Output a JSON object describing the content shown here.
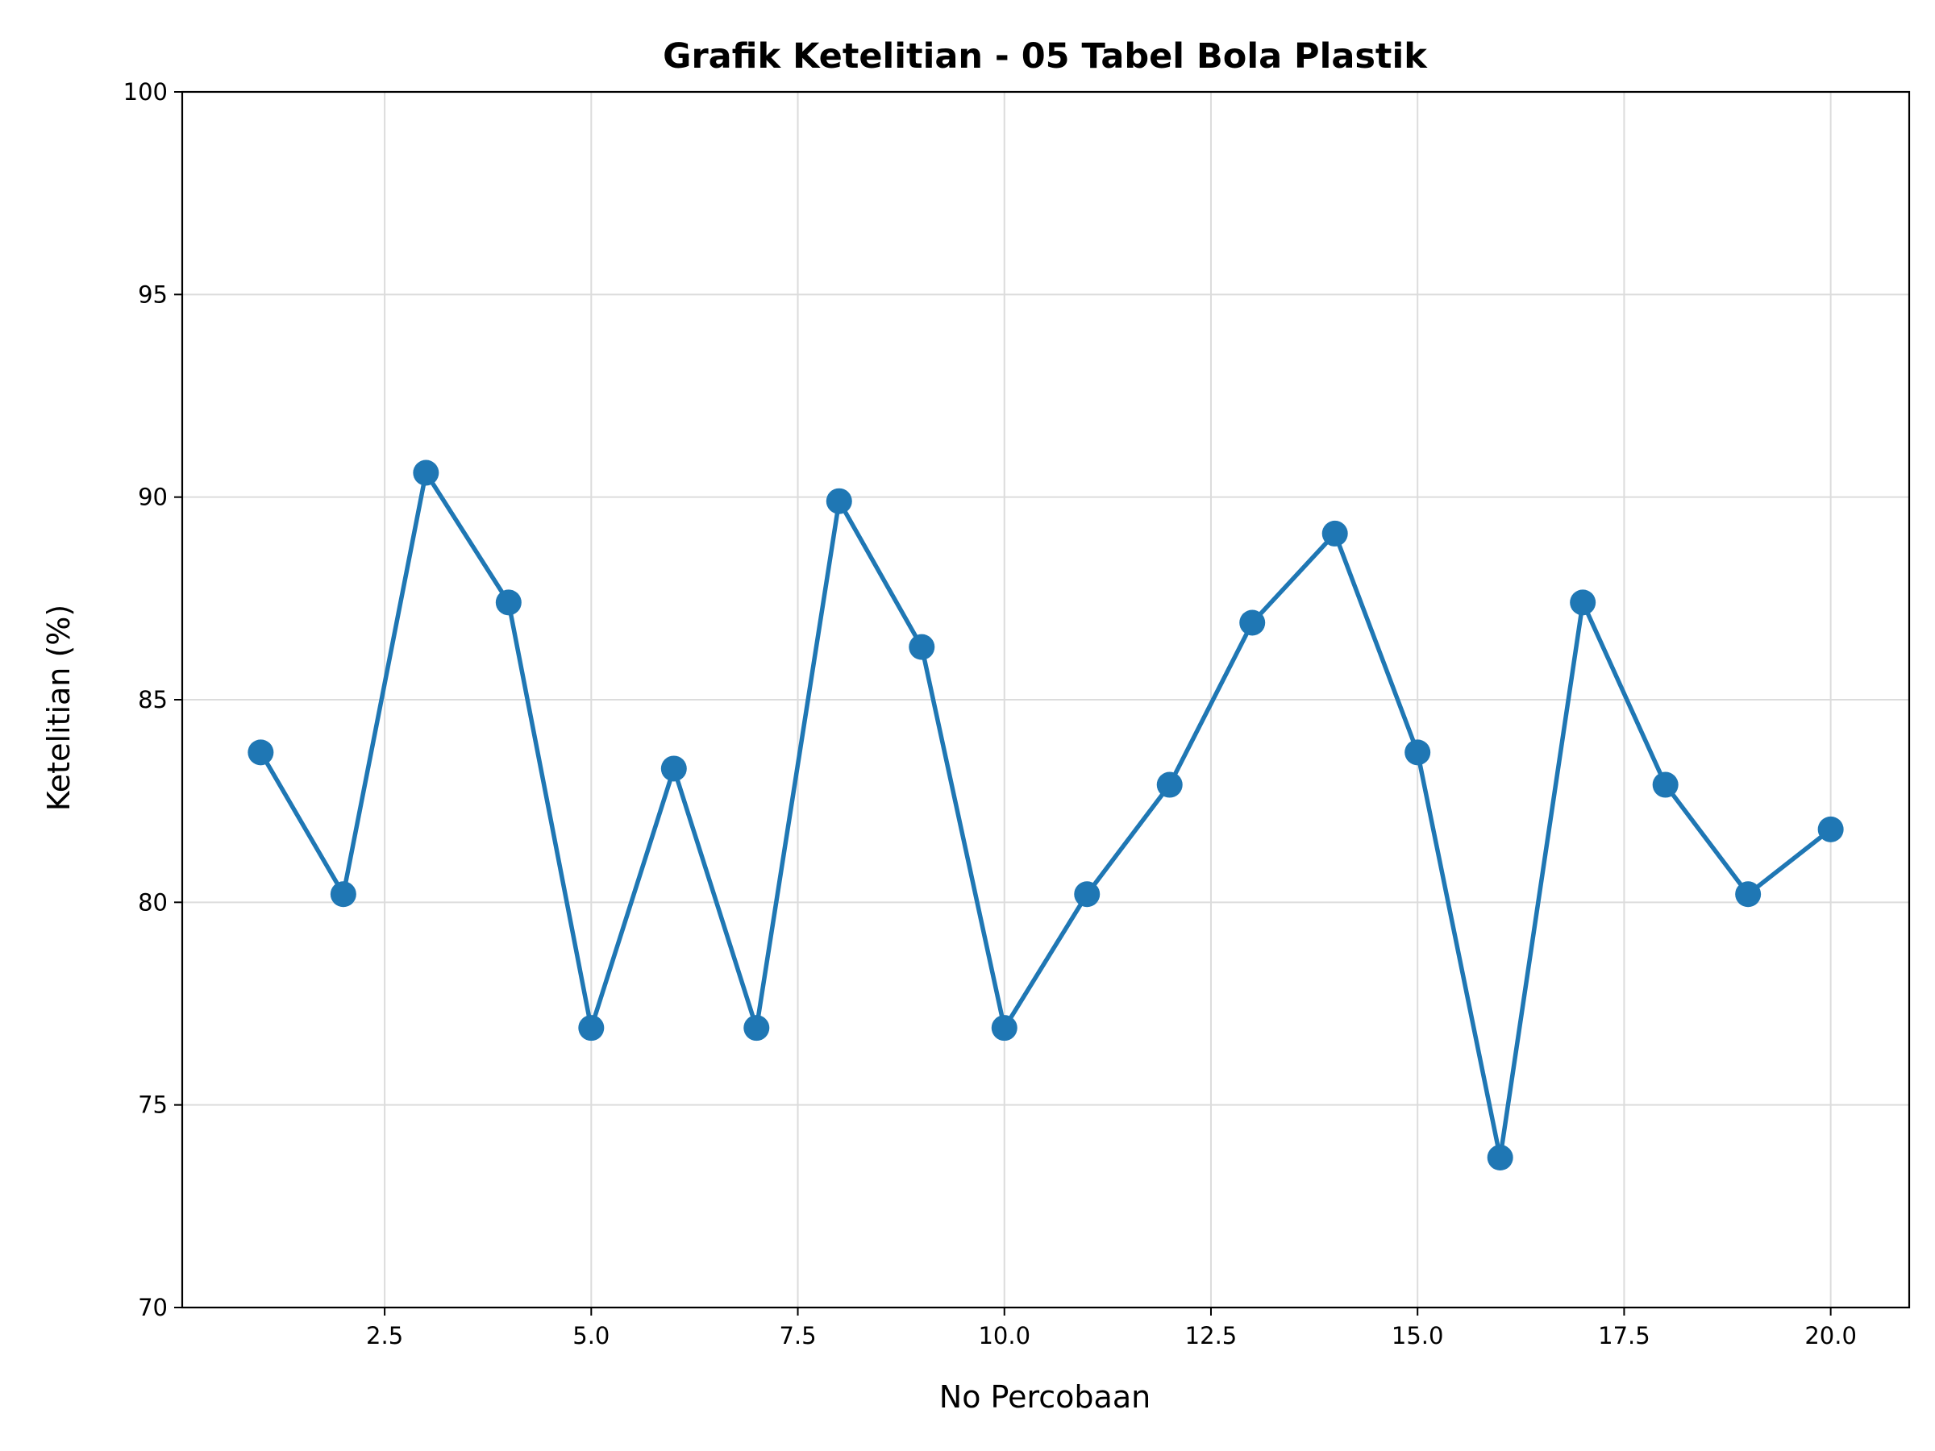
{
  "chart_data": {
    "type": "line",
    "title": "Grafik Ketelitian - 05 Tabel Bola Plastik",
    "xlabel": "No Percobaan",
    "ylabel": "Ketelitian (%)",
    "xlim": [
      0.05,
      20.95
    ],
    "ylim": [
      70,
      100
    ],
    "xticks": [
      2.5,
      5.0,
      7.5,
      10.0,
      12.5,
      15.0,
      17.5,
      20.0
    ],
    "xtick_labels": [
      "2.5",
      "5.0",
      "7.5",
      "10.0",
      "12.5",
      "15.0",
      "17.5",
      "20.0"
    ],
    "yticks": [
      70,
      75,
      80,
      85,
      90,
      95,
      100
    ],
    "ytick_labels": [
      "70",
      "75",
      "80",
      "85",
      "90",
      "95",
      "100"
    ],
    "grid": true,
    "color": "#1f77b4",
    "marker": "circle",
    "x": [
      1,
      2,
      3,
      4,
      5,
      6,
      7,
      8,
      9,
      10,
      11,
      12,
      13,
      14,
      15,
      16,
      17,
      18,
      19,
      20
    ],
    "y": [
      83.7,
      80.2,
      90.6,
      87.4,
      76.9,
      83.3,
      76.9,
      89.9,
      86.3,
      76.9,
      80.2,
      82.9,
      86.9,
      89.1,
      83.7,
      73.7,
      87.4,
      82.9,
      80.2,
      81.8
    ]
  }
}
